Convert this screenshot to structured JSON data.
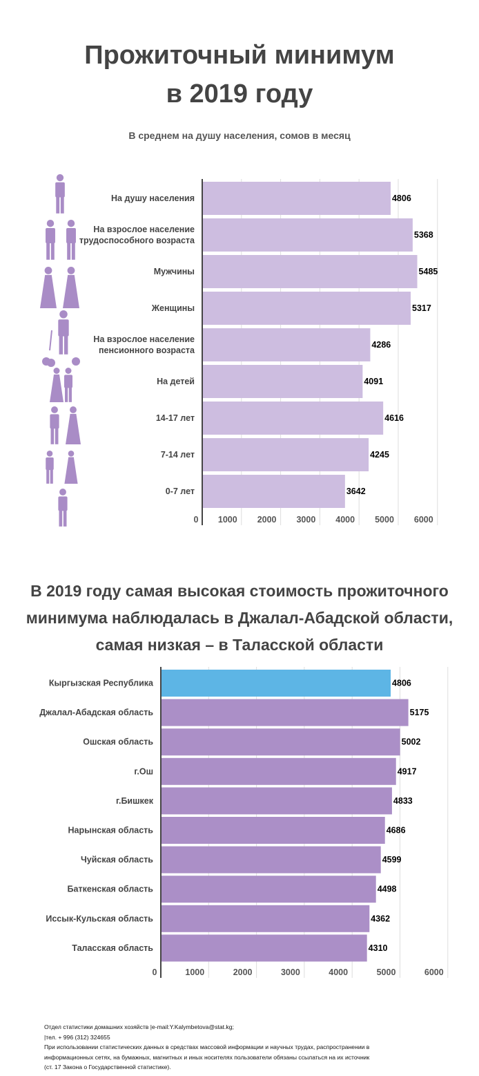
{
  "title_lines": [
    "Прожиточный минимум",
    "в 2019 году"
  ],
  "subtitle": "В среднем на душу населения, сомов в месяц",
  "title2_lines": [
    "В 2019 году самая высокая стоимость прожиточного",
    "минимума наблюдалась в Джалал-Абадской области,",
    "самая низкая – в Таласской области"
  ],
  "colors": {
    "bar_light": "#cdbde0",
    "bar_dark": "#ab8fc7",
    "bar_highlight": "#5db5e5",
    "icon": "#a98cc6",
    "axis": "#444444",
    "grid": "#dddddd"
  },
  "icons": [
    "person-icon",
    "workers-icon",
    "man-woman-icon",
    "woman-icon",
    "elderly-man-icon",
    "children-balloons-icon",
    "teenagers-icon",
    "kids-icon",
    "baby-icon"
  ],
  "chart_data": [
    {
      "type": "bar",
      "orientation": "horizontal",
      "categories": [
        [
          "На душу населения"
        ],
        [
          "На взрослое население",
          "трудоспособного возраста"
        ],
        [
          "Мужчины"
        ],
        [
          "Женщины"
        ],
        [
          "На взрослое население",
          "пенсионного возраста"
        ],
        [
          "На детей"
        ],
        [
          "14-17 лет"
        ],
        [
          "7-14 лет"
        ],
        [
          "0-7 лет"
        ]
      ],
      "values": [
        4806,
        5368,
        5485,
        5317,
        4286,
        4091,
        4616,
        4245,
        3642
      ],
      "xlim": [
        0,
        6000
      ],
      "ticks": [
        "0",
        "1000",
        "2000",
        "3000",
        "4000",
        "5000",
        "6000"
      ],
      "grid": true
    },
    {
      "type": "bar",
      "orientation": "horizontal",
      "categories": [
        [
          "Кыргызская Республика"
        ],
        [
          "Джалал-Абадская область"
        ],
        [
          "Ошская область"
        ],
        [
          "г.Ош"
        ],
        [
          "г.Бишкек"
        ],
        [
          "Нарынская область"
        ],
        [
          "Чуйская область"
        ],
        [
          "Баткенская область"
        ],
        [
          "Иссык-Кульская область"
        ],
        [
          "Таласская область"
        ]
      ],
      "values": [
        4806,
        5175,
        5002,
        4917,
        4833,
        4686,
        4599,
        4498,
        4362,
        4310
      ],
      "highlight": "Кыргызская Республика",
      "xlim": [
        0,
        6000
      ],
      "ticks": [
        "0",
        "1000",
        "2000",
        "3000",
        "4000",
        "5000",
        "6000"
      ],
      "grid": true
    }
  ],
  "footer": [
    "Отдел статистики домашних хозяйств |e-mail:Y.Kalymbetova@stat.kg;",
    "|тел. + 996 (312) 324655",
    "При использовании статистических данных в средствах массовой информации и научных трудах, распространении в",
    "информационных сетях, на бумажных, магнитных и иных носителях пользователи обязаны ссылаться на их источник",
    "(ст. 17 Закона о Государственной статистике)."
  ]
}
